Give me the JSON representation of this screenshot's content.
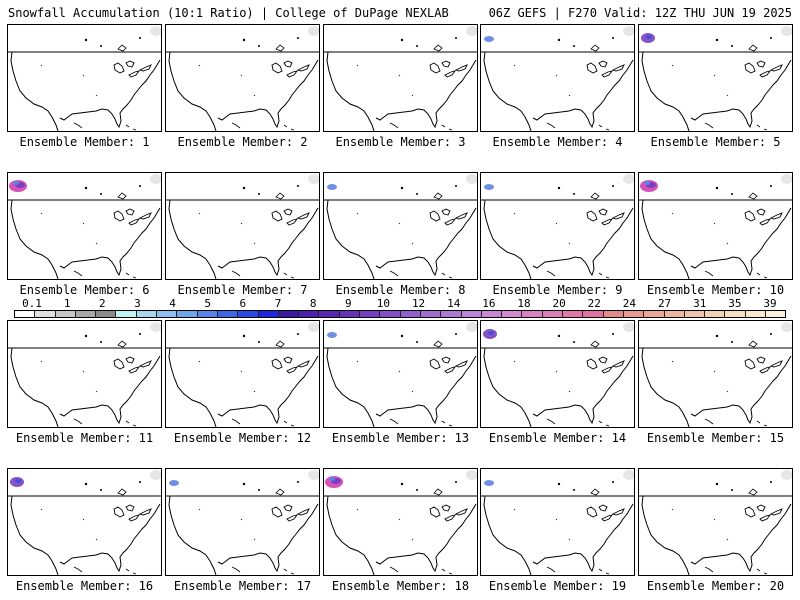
{
  "header": {
    "title_left": "Snowfall Accumulation (10:1 Ratio) | College of DuPage NEXLAB",
    "title_right": "06Z GEFS | F270 Valid: 12Z THU JUN 19 2025"
  },
  "members": [
    {
      "label": "Ensemble Member: 1",
      "snow": []
    },
    {
      "label": "Ensemble Member: 2",
      "snow": []
    },
    {
      "label": "Ensemble Member: 3",
      "snow": []
    },
    {
      "label": "Ensemble Member: 4",
      "snow": [
        {
          "region": "pacific-northwest",
          "level": "light"
        }
      ]
    },
    {
      "label": "Ensemble Member: 5",
      "snow": [
        {
          "region": "pacific-northwest",
          "level": "moderate"
        }
      ]
    },
    {
      "label": "Ensemble Member: 6",
      "snow": [
        {
          "region": "pacific-northwest",
          "level": "heavy"
        }
      ]
    },
    {
      "label": "Ensemble Member: 7",
      "snow": []
    },
    {
      "label": "Ensemble Member: 8",
      "snow": [
        {
          "region": "pacific-northwest",
          "level": "light"
        }
      ]
    },
    {
      "label": "Ensemble Member: 9",
      "snow": [
        {
          "region": "pacific-northwest",
          "level": "light"
        }
      ]
    },
    {
      "label": "Ensemble Member: 10",
      "snow": [
        {
          "region": "pacific-northwest",
          "level": "heavy"
        }
      ]
    },
    {
      "label": "Ensemble Member: 11",
      "snow": []
    },
    {
      "label": "Ensemble Member: 12",
      "snow": []
    },
    {
      "label": "Ensemble Member: 13",
      "snow": [
        {
          "region": "pacific-northwest",
          "level": "light"
        }
      ]
    },
    {
      "label": "Ensemble Member: 14",
      "snow": [
        {
          "region": "pacific-northwest",
          "level": "moderate"
        }
      ]
    },
    {
      "label": "Ensemble Member: 15",
      "snow": []
    },
    {
      "label": "Ensemble Member: 16",
      "snow": [
        {
          "region": "pacific-northwest",
          "level": "moderate"
        }
      ]
    },
    {
      "label": "Ensemble Member: 17",
      "snow": [
        {
          "region": "pacific-northwest",
          "level": "light"
        }
      ]
    },
    {
      "label": "Ensemble Member: 18",
      "snow": [
        {
          "region": "pacific-northwest",
          "level": "heavy"
        }
      ]
    },
    {
      "label": "Ensemble Member: 19",
      "snow": [
        {
          "region": "pacific-northwest",
          "level": "light"
        }
      ]
    },
    {
      "label": "Ensemble Member: 20",
      "snow": []
    }
  ],
  "snow_colors": {
    "light": "#6f8fe0",
    "moderate": "#7a3fc0",
    "heavy": "#d23fb0"
  },
  "colorbar": {
    "labels": [
      "0.1",
      "1",
      "2",
      "3",
      "4",
      "5",
      "6",
      "7",
      "8",
      "9",
      "10",
      "12",
      "14",
      "16",
      "18",
      "20",
      "22",
      "24",
      "27",
      "31",
      "35",
      "39"
    ],
    "colors": [
      "#ffffff",
      "#e0e0e0",
      "#c8c8c8",
      "#a8a8a8",
      "#8a8a8a",
      "#bff2f2",
      "#a9d7ee",
      "#8cc1ee",
      "#6fa6ea",
      "#5585e8",
      "#3b66e6",
      "#2a48e3",
      "#1e26e0",
      "#3c1aa0",
      "#4a20ac",
      "#5828b4",
      "#6632bc",
      "#7440c2",
      "#8250c8",
      "#9060cc",
      "#9e6ed0",
      "#ac7cd4",
      "#ba84d8",
      "#c888d6",
      "#d48ad0",
      "#d884c4",
      "#dc7eb8",
      "#e078ac",
      "#e272a0",
      "#e48a8a",
      "#e89a90",
      "#eba898",
      "#eeb6a0",
      "#f0c4aa",
      "#f2d2b4",
      "#f6e0c4",
      "#fae8d0",
      "#fcf0dc"
    ]
  }
}
